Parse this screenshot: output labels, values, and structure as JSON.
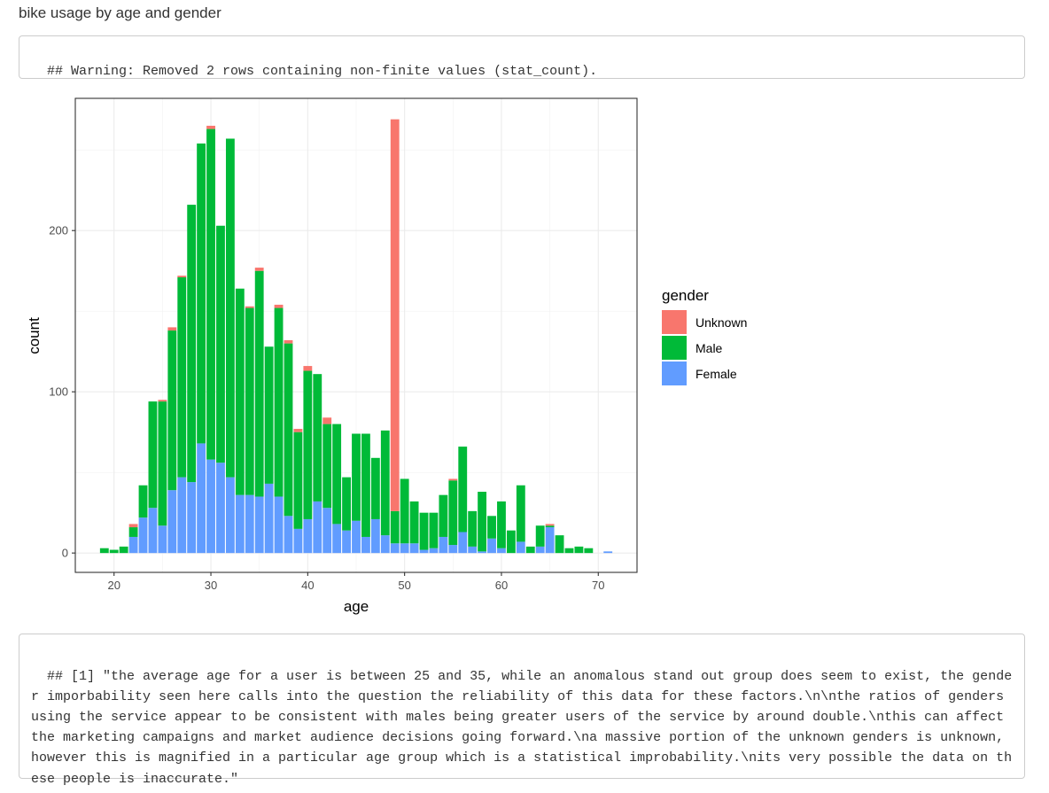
{
  "page": {
    "heading": "bike usage by age and gender",
    "warning": "## Warning: Removed 2 rows containing non-finite values (stat_count).",
    "output": "## [1] \"the average age for a user is between 25 and 35, while an anomalous stand out group does seem to exist, the gender imporbability seen here calls into the question the reliability of this data for these factors.\\n\\nthe ratios of genders using the service appear to be consistent with males being greater users of the service by around double.\\nthis can affect the marketing campaigns and market audience decisions going forward.\\na massive portion of the unknown genders is unknown, however this is magnified in a particular age group which is a statistical improbability.\\nits very possible the data on these people is inaccurate.\""
  },
  "chart_data": {
    "type": "bar",
    "stacked": true,
    "title": "",
    "xlabel": "age",
    "ylabel": "count",
    "xlim": [
      16,
      74
    ],
    "ylim": [
      -12,
      282
    ],
    "xticks": [
      20,
      30,
      40,
      50,
      60,
      70
    ],
    "yticks": [
      0,
      100,
      200
    ],
    "grid": true,
    "legend": {
      "title": "gender",
      "position": "right"
    },
    "x": [
      19,
      20,
      21,
      22,
      23,
      24,
      25,
      26,
      27,
      28,
      29,
      30,
      31,
      32,
      33,
      34,
      35,
      36,
      37,
      38,
      39,
      40,
      41,
      42,
      43,
      44,
      45,
      46,
      47,
      48,
      49,
      50,
      51,
      52,
      53,
      54,
      55,
      56,
      57,
      58,
      59,
      60,
      61,
      62,
      63,
      64,
      65,
      66,
      67,
      68,
      69,
      70,
      71
    ],
    "series": [
      {
        "name": "Female",
        "color": "#619CFF",
        "values": [
          0,
          0,
          0,
          10,
          22,
          28,
          17,
          39,
          47,
          44,
          68,
          58,
          56,
          47,
          36,
          36,
          35,
          43,
          35,
          23,
          15,
          21,
          32,
          28,
          18,
          14,
          20,
          10,
          21,
          11,
          6,
          6,
          6,
          2,
          3,
          10,
          5,
          13,
          4,
          1,
          9,
          3,
          0,
          7,
          0,
          4,
          16,
          0,
          0,
          0,
          0,
          0,
          1
        ]
      },
      {
        "name": "Male",
        "color": "#00BA38",
        "values": [
          3,
          2,
          4,
          6,
          20,
          66,
          77,
          99,
          124,
          172,
          186,
          205,
          147,
          210,
          128,
          116,
          140,
          85,
          117,
          107,
          60,
          92,
          79,
          52,
          62,
          33,
          54,
          64,
          38,
          65,
          20,
          40,
          26,
          23,
          22,
          26,
          40,
          53,
          22,
          37,
          14,
          29,
          14,
          35,
          4,
          13,
          1,
          11,
          3,
          4,
          3,
          0,
          0
        ]
      },
      {
        "name": "Unknown",
        "color": "#F8766D",
        "values": [
          0,
          0,
          0,
          2,
          0,
          0,
          1,
          2,
          1,
          0,
          0,
          2,
          0,
          0,
          0,
          1,
          2,
          0,
          2,
          2,
          2,
          3,
          0,
          4,
          0,
          0,
          0,
          0,
          0,
          0,
          243,
          0,
          0,
          0,
          0,
          0,
          1,
          0,
          0,
          0,
          0,
          0,
          0,
          0,
          0,
          0,
          1,
          0,
          0,
          0,
          0,
          0,
          0
        ]
      }
    ]
  }
}
